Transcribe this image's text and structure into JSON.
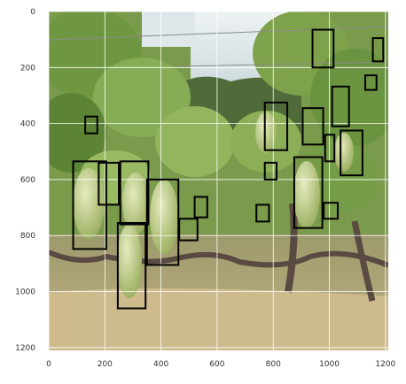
{
  "figure": {
    "x_ticks": [
      "0",
      "200",
      "400",
      "600",
      "800",
      "1000",
      "1200"
    ],
    "y_ticks": [
      "0",
      "200",
      "400",
      "600",
      "800",
      "1000",
      "1200"
    ],
    "x_range": [
      0,
      1210
    ],
    "y_range": [
      1210,
      0
    ],
    "grid": true,
    "box_color": "#000000",
    "image_description_colors": {
      "sky": "#dfe7ea",
      "leaves": "#7fa64a",
      "grapes": "#b9c98a",
      "ground": "#a89a76",
      "vine": "#5a4a42"
    }
  },
  "chart_data": {
    "type": "scatter",
    "xlim": [
      0,
      1210
    ],
    "ylim": [
      1210,
      0
    ],
    "grid": true,
    "boxes": [
      {
        "x0": 940,
        "y0": 65,
        "x1": 1015,
        "y1": 200
      },
      {
        "x0": 1155,
        "y0": 95,
        "x1": 1192,
        "y1": 178
      },
      {
        "x0": 1128,
        "y0": 228,
        "x1": 1168,
        "y1": 280
      },
      {
        "x0": 1010,
        "y0": 268,
        "x1": 1070,
        "y1": 410
      },
      {
        "x0": 770,
        "y0": 325,
        "x1": 850,
        "y1": 495
      },
      {
        "x0": 905,
        "y0": 345,
        "x1": 978,
        "y1": 475
      },
      {
        "x0": 1040,
        "y0": 425,
        "x1": 1118,
        "y1": 585
      },
      {
        "x0": 985,
        "y0": 440,
        "x1": 1018,
        "y1": 535
      },
      {
        "x0": 130,
        "y0": 375,
        "x1": 173,
        "y1": 435
      },
      {
        "x0": 87,
        "y0": 535,
        "x1": 205,
        "y1": 848
      },
      {
        "x0": 178,
        "y0": 540,
        "x1": 250,
        "y1": 690
      },
      {
        "x0": 255,
        "y0": 535,
        "x1": 355,
        "y1": 760
      },
      {
        "x0": 350,
        "y0": 600,
        "x1": 462,
        "y1": 905
      },
      {
        "x0": 246,
        "y0": 755,
        "x1": 345,
        "y1": 1060
      },
      {
        "x0": 465,
        "y0": 740,
        "x1": 530,
        "y1": 817
      },
      {
        "x0": 520,
        "y0": 662,
        "x1": 565,
        "y1": 735
      },
      {
        "x0": 770,
        "y0": 540,
        "x1": 812,
        "y1": 600
      },
      {
        "x0": 740,
        "y0": 690,
        "x1": 785,
        "y1": 750
      },
      {
        "x0": 875,
        "y0": 520,
        "x1": 975,
        "y1": 773
      },
      {
        "x0": 980,
        "y0": 683,
        "x1": 1030,
        "y1": 740
      }
    ]
  }
}
